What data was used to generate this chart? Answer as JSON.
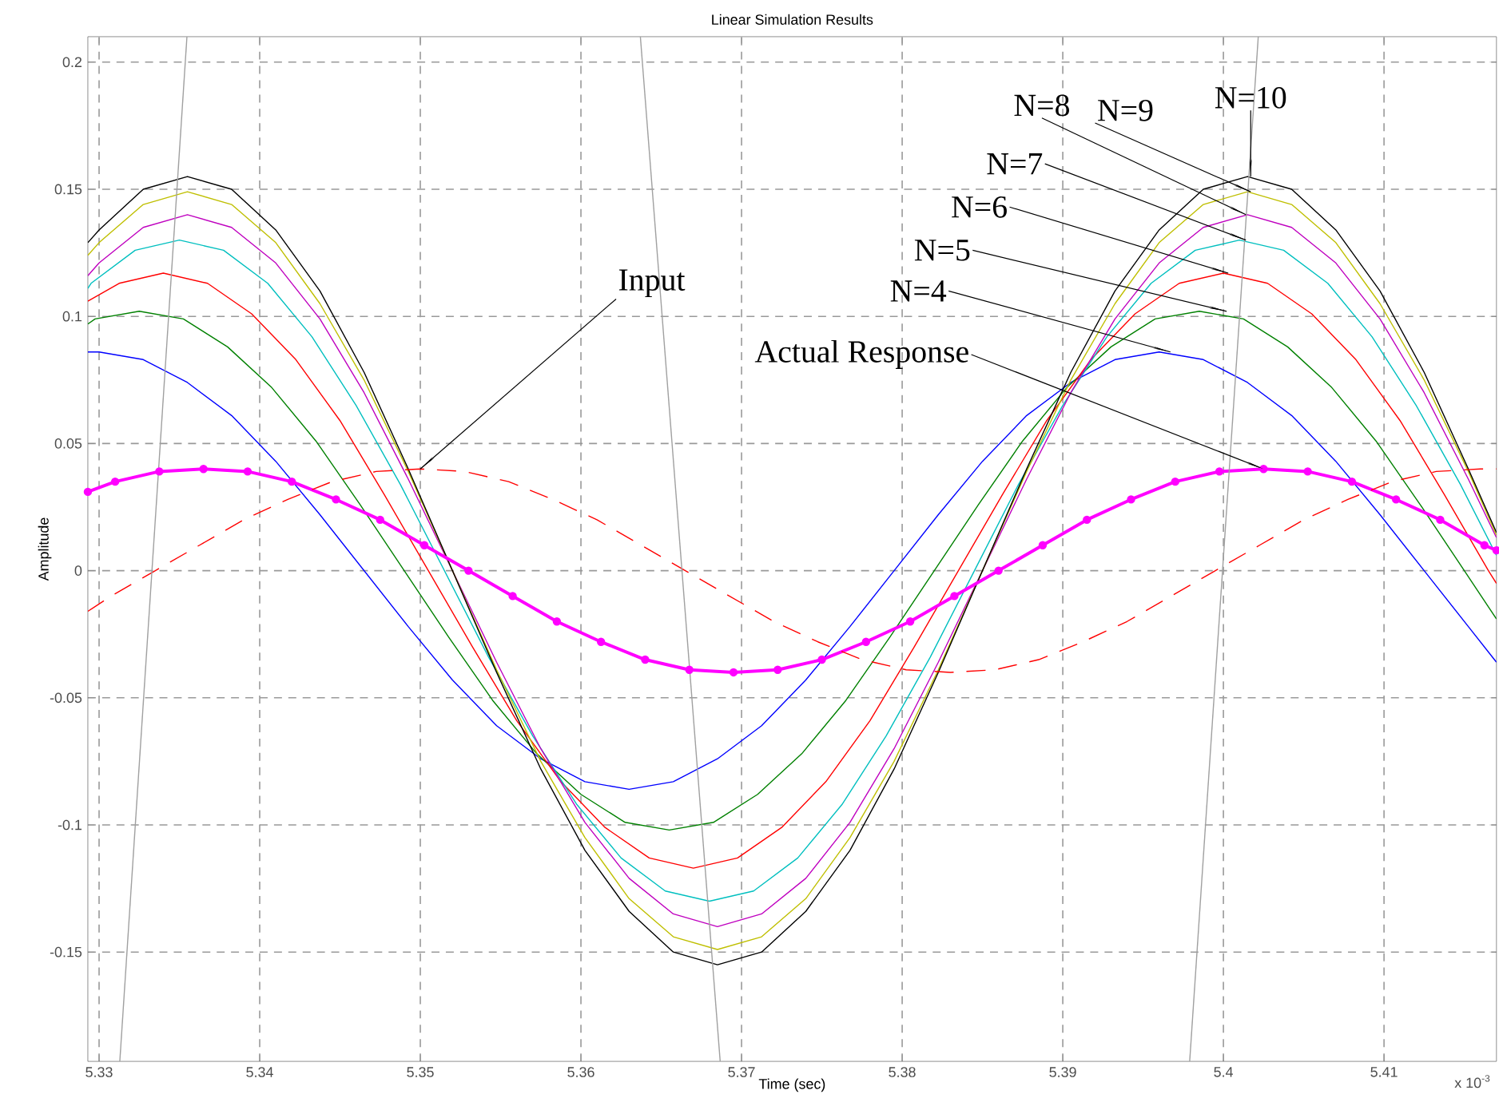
{
  "chart_data": {
    "type": "line",
    "title": "Linear Simulation Results",
    "xlabel": "Time (sec)",
    "ylabel": "Amplitude",
    "xlim": [
      5.3293,
      5.417
    ],
    "ylim": [
      -0.193,
      0.21
    ],
    "xticks": [
      5.33,
      5.34,
      5.35,
      5.36,
      5.37,
      5.38,
      5.39,
      5.4,
      5.41
    ],
    "yticks": [
      -0.15,
      -0.1,
      -0.05,
      0,
      0.05,
      0.1,
      0.15,
      0.2
    ],
    "grid": true,
    "series": [
      {
        "color": "#0000ff",
        "x": [
          5.3293,
          5.33,
          5.33275,
          5.3355,
          5.33825,
          5.341,
          5.34375,
          5.3465,
          5.34925,
          5.352,
          5.35475,
          5.3575,
          5.36025,
          5.363,
          5.36575,
          5.3685,
          5.37125,
          5.374,
          5.37675,
          5.3795,
          5.38225,
          5.385,
          5.38775,
          5.3905,
          5.39325,
          5.396,
          5.39875,
          5.4015,
          5.40425,
          5.407,
          5.40975,
          5.4125,
          5.41525,
          5.417
        ],
        "values": [
          0.086,
          0.086,
          0.083,
          0.074,
          0.061,
          0.043,
          0.022,
          0,
          -0.022,
          -0.043,
          -0.061,
          -0.074,
          -0.083,
          -0.086,
          -0.083,
          -0.074,
          -0.061,
          -0.043,
          -0.022,
          0,
          0.022,
          0.043,
          0.061,
          0.074,
          0.083,
          0.086,
          0.083,
          0.074,
          0.061,
          0.043,
          0.022,
          0,
          -0.022,
          -0.036
        ]
      },
      {
        "color": "#008000",
        "x": [
          5.3293,
          5.32975,
          5.3325,
          5.33525,
          5.338,
          5.34075,
          5.3435,
          5.34625,
          5.349,
          5.35175,
          5.3545,
          5.35725,
          5.36,
          5.36275,
          5.3655,
          5.36825,
          5.371,
          5.37375,
          5.3765,
          5.37925,
          5.382,
          5.38475,
          5.3875,
          5.39025,
          5.393,
          5.39575,
          5.3985,
          5.40125,
          5.404,
          5.40675,
          5.4095,
          5.41225,
          5.415,
          5.417
        ],
        "values": [
          0.097,
          0.099,
          0.102,
          0.099,
          0.088,
          0.072,
          0.051,
          0.026,
          0,
          -0.026,
          -0.051,
          -0.072,
          -0.088,
          -0.099,
          -0.102,
          -0.099,
          -0.088,
          -0.072,
          -0.051,
          -0.026,
          0,
          0.026,
          0.051,
          0.072,
          0.088,
          0.099,
          0.102,
          0.099,
          0.088,
          0.072,
          0.051,
          0.026,
          0,
          -0.019
        ]
      },
      {
        "color": "#ff0000",
        "x": [
          5.3293,
          5.33125,
          5.334,
          5.33675,
          5.3395,
          5.34225,
          5.345,
          5.34775,
          5.3505,
          5.35325,
          5.356,
          5.35875,
          5.3615,
          5.36425,
          5.367,
          5.36975,
          5.3725,
          5.37525,
          5.378,
          5.38075,
          5.3835,
          5.38625,
          5.389,
          5.39175,
          5.3945,
          5.39725,
          5.4,
          5.40275,
          5.4055,
          5.40825,
          5.411,
          5.41375,
          5.4165,
          5.417
        ],
        "values": [
          0.106,
          0.113,
          0.117,
          0.113,
          0.101,
          0.083,
          0.059,
          0.03,
          0,
          -0.03,
          -0.059,
          -0.083,
          -0.101,
          -0.113,
          -0.117,
          -0.113,
          -0.101,
          -0.083,
          -0.059,
          -0.03,
          0,
          0.03,
          0.059,
          0.083,
          0.101,
          0.113,
          0.117,
          0.113,
          0.101,
          0.083,
          0.059,
          0.03,
          0,
          -0.005
        ]
      },
      {
        "color": "#00bfbf",
        "x": [
          5.3293,
          5.3295,
          5.33225,
          5.335,
          5.33775,
          5.3405,
          5.34325,
          5.346,
          5.34875,
          5.3515,
          5.35425,
          5.357,
          5.35975,
          5.3625,
          5.36525,
          5.368,
          5.37075,
          5.3735,
          5.37625,
          5.379,
          5.38175,
          5.3845,
          5.38725,
          5.39,
          5.39275,
          5.3955,
          5.39825,
          5.401,
          5.40375,
          5.4065,
          5.40925,
          5.412,
          5.41475,
          5.417
        ],
        "values": [
          0.111,
          0.113,
          0.126,
          0.13,
          0.126,
          0.113,
          0.092,
          0.065,
          0.034,
          0,
          -0.034,
          -0.065,
          -0.092,
          -0.113,
          -0.126,
          -0.13,
          -0.126,
          -0.113,
          -0.092,
          -0.065,
          -0.034,
          0,
          0.034,
          0.065,
          0.092,
          0.113,
          0.126,
          0.13,
          0.126,
          0.113,
          0.092,
          0.065,
          0.034,
          0.006
        ]
      },
      {
        "color": "#bf00bf",
        "x": [
          5.3293,
          5.33,
          5.33275,
          5.3355,
          5.33825,
          5.341,
          5.34375,
          5.3465,
          5.34925,
          5.352,
          5.35475,
          5.3575,
          5.36025,
          5.363,
          5.36575,
          5.3685,
          5.37125,
          5.374,
          5.37675,
          5.3795,
          5.38225,
          5.385,
          5.38775,
          5.3905,
          5.39325,
          5.396,
          5.39875,
          5.4015,
          5.40425,
          5.407,
          5.40975,
          5.4125,
          5.41525,
          5.417
        ],
        "values": [
          0.116,
          0.121,
          0.135,
          0.14,
          0.135,
          0.121,
          0.099,
          0.07,
          0.036,
          0,
          -0.036,
          -0.07,
          -0.099,
          -0.121,
          -0.135,
          -0.14,
          -0.135,
          -0.121,
          -0.099,
          -0.07,
          -0.036,
          0,
          0.036,
          0.07,
          0.099,
          0.121,
          0.135,
          0.14,
          0.135,
          0.121,
          0.099,
          0.07,
          0.036,
          0.013
        ]
      },
      {
        "color": "#bfbf00",
        "x": [
          5.3293,
          5.33,
          5.33275,
          5.3355,
          5.33825,
          5.341,
          5.34375,
          5.3465,
          5.34925,
          5.352,
          5.35475,
          5.3575,
          5.36025,
          5.363,
          5.36575,
          5.3685,
          5.37125,
          5.374,
          5.37675,
          5.3795,
          5.38225,
          5.385,
          5.38775,
          5.3905,
          5.39325,
          5.396,
          5.39875,
          5.4015,
          5.40425,
          5.407,
          5.40975,
          5.4125,
          5.41525,
          5.417
        ],
        "values": [
          0.124,
          0.129,
          0.144,
          0.149,
          0.144,
          0.129,
          0.105,
          0.075,
          0.039,
          0,
          -0.039,
          -0.075,
          -0.105,
          -0.129,
          -0.144,
          -0.149,
          -0.144,
          -0.129,
          -0.105,
          -0.075,
          -0.039,
          0,
          0.039,
          0.075,
          0.105,
          0.129,
          0.144,
          0.149,
          0.144,
          0.129,
          0.105,
          0.075,
          0.039,
          0.014
        ]
      },
      {
        "color": "#000000",
        "x": [
          5.3293,
          5.33,
          5.33275,
          5.3355,
          5.33825,
          5.341,
          5.34375,
          5.3465,
          5.34925,
          5.352,
          5.35475,
          5.3575,
          5.36025,
          5.363,
          5.36575,
          5.3685,
          5.37125,
          5.374,
          5.37675,
          5.3795,
          5.38225,
          5.385,
          5.38775,
          5.3905,
          5.39325,
          5.396,
          5.39875,
          5.4015,
          5.40425,
          5.407,
          5.40975,
          5.4125,
          5.41525,
          5.417
        ],
        "values": [
          0.129,
          0.134,
          0.15,
          0.155,
          0.15,
          0.134,
          0.11,
          0.078,
          0.04,
          0,
          -0.04,
          -0.078,
          -0.11,
          -0.134,
          -0.15,
          -0.155,
          -0.15,
          -0.134,
          -0.11,
          -0.078,
          -0.04,
          0,
          0.04,
          0.078,
          0.11,
          0.134,
          0.15,
          0.155,
          0.15,
          0.134,
          0.11,
          0.078,
          0.04,
          0.015
        ]
      },
      {
        "color": "#ff00ff",
        "marker": "circle",
        "x": [
          5.3293,
          5.331,
          5.33375,
          5.3365,
          5.33925,
          5.342,
          5.34475,
          5.3475,
          5.35025,
          5.353,
          5.35575,
          5.3585,
          5.36125,
          5.364,
          5.36675,
          5.3695,
          5.37225,
          5.375,
          5.37775,
          5.3805,
          5.38325,
          5.386,
          5.38875,
          5.3915,
          5.39425,
          5.397,
          5.39975,
          5.4025,
          5.40525,
          5.408,
          5.41075,
          5.4135,
          5.41625,
          5.417
        ],
        "values": [
          0.031,
          0.035,
          0.039,
          0.04,
          0.039,
          0.035,
          0.028,
          0.02,
          0.01,
          0,
          -0.01,
          -0.02,
          -0.028,
          -0.035,
          -0.039,
          -0.04,
          -0.039,
          -0.035,
          -0.028,
          -0.02,
          -0.01,
          0,
          0.01,
          0.02,
          0.028,
          0.035,
          0.039,
          0.04,
          0.039,
          0.035,
          0.028,
          0.02,
          0.01,
          0.008
        ]
      },
      {
        "color": "#ff0000",
        "line_style": "dashed",
        "x": [
          5.3293,
          5.33075,
          5.3335,
          5.33625,
          5.339,
          5.34175,
          5.3445,
          5.34725,
          5.35,
          5.35275,
          5.3555,
          5.35825,
          5.361,
          5.36375,
          5.3665,
          5.36925,
          5.372,
          5.37475,
          5.3775,
          5.38025,
          5.383,
          5.38575,
          5.3885,
          5.39125,
          5.394,
          5.39675,
          5.3995,
          5.40225,
          5.405,
          5.40775,
          5.4105,
          5.41325,
          5.416,
          5.417
        ],
        "values": [
          -0.016,
          -0.01,
          0,
          0.01,
          0.02,
          0.028,
          0.035,
          0.039,
          0.04,
          0.039,
          0.035,
          0.028,
          0.02,
          0.01,
          0,
          -0.01,
          -0.02,
          -0.028,
          -0.035,
          -0.039,
          -0.04,
          -0.039,
          -0.035,
          -0.028,
          -0.02,
          -0.01,
          0,
          0.01,
          0.02,
          0.028,
          0.035,
          0.039,
          0.04,
          0.04
        ]
      },
      {
        "color": "#a0a0a0",
        "x": [
          5.33547,
          5.33129
        ],
        "values": [
          0.21,
          -0.193
        ]
      },
      {
        "color": "#a0a0a0",
        "x": [
          5.3637,
          5.36867
        ],
        "values": [
          0.21,
          -0.193
        ]
      },
      {
        "color": "#a0a0a0",
        "x": [
          5.40217,
          5.3979
        ],
        "values": [
          0.21,
          -0.193
        ]
      }
    ],
    "annotations": [
      {
        "text": "Input",
        "x": 5.35,
        "y": 0.04
      },
      {
        "text": "Actual Response",
        "x": 5.4025,
        "y": 0.04
      },
      {
        "text": "N=4",
        "x": 5.3967,
        "y": 0.086
      },
      {
        "text": "N=5",
        "x": 5.4002,
        "y": 0.102
      },
      {
        "text": "N=6",
        "x": 5.4003,
        "y": 0.117
      },
      {
        "text": "N=7",
        "x": 5.4014,
        "y": 0.13
      },
      {
        "text": "N=8",
        "x": 5.4014,
        "y": 0.14
      },
      {
        "text": "N=9",
        "x": 5.4017,
        "y": 0.149
      },
      {
        "text": "N=10",
        "x": 5.4017,
        "y": 0.155
      },
      "x 10$^{-3}$"
    ]
  }
}
